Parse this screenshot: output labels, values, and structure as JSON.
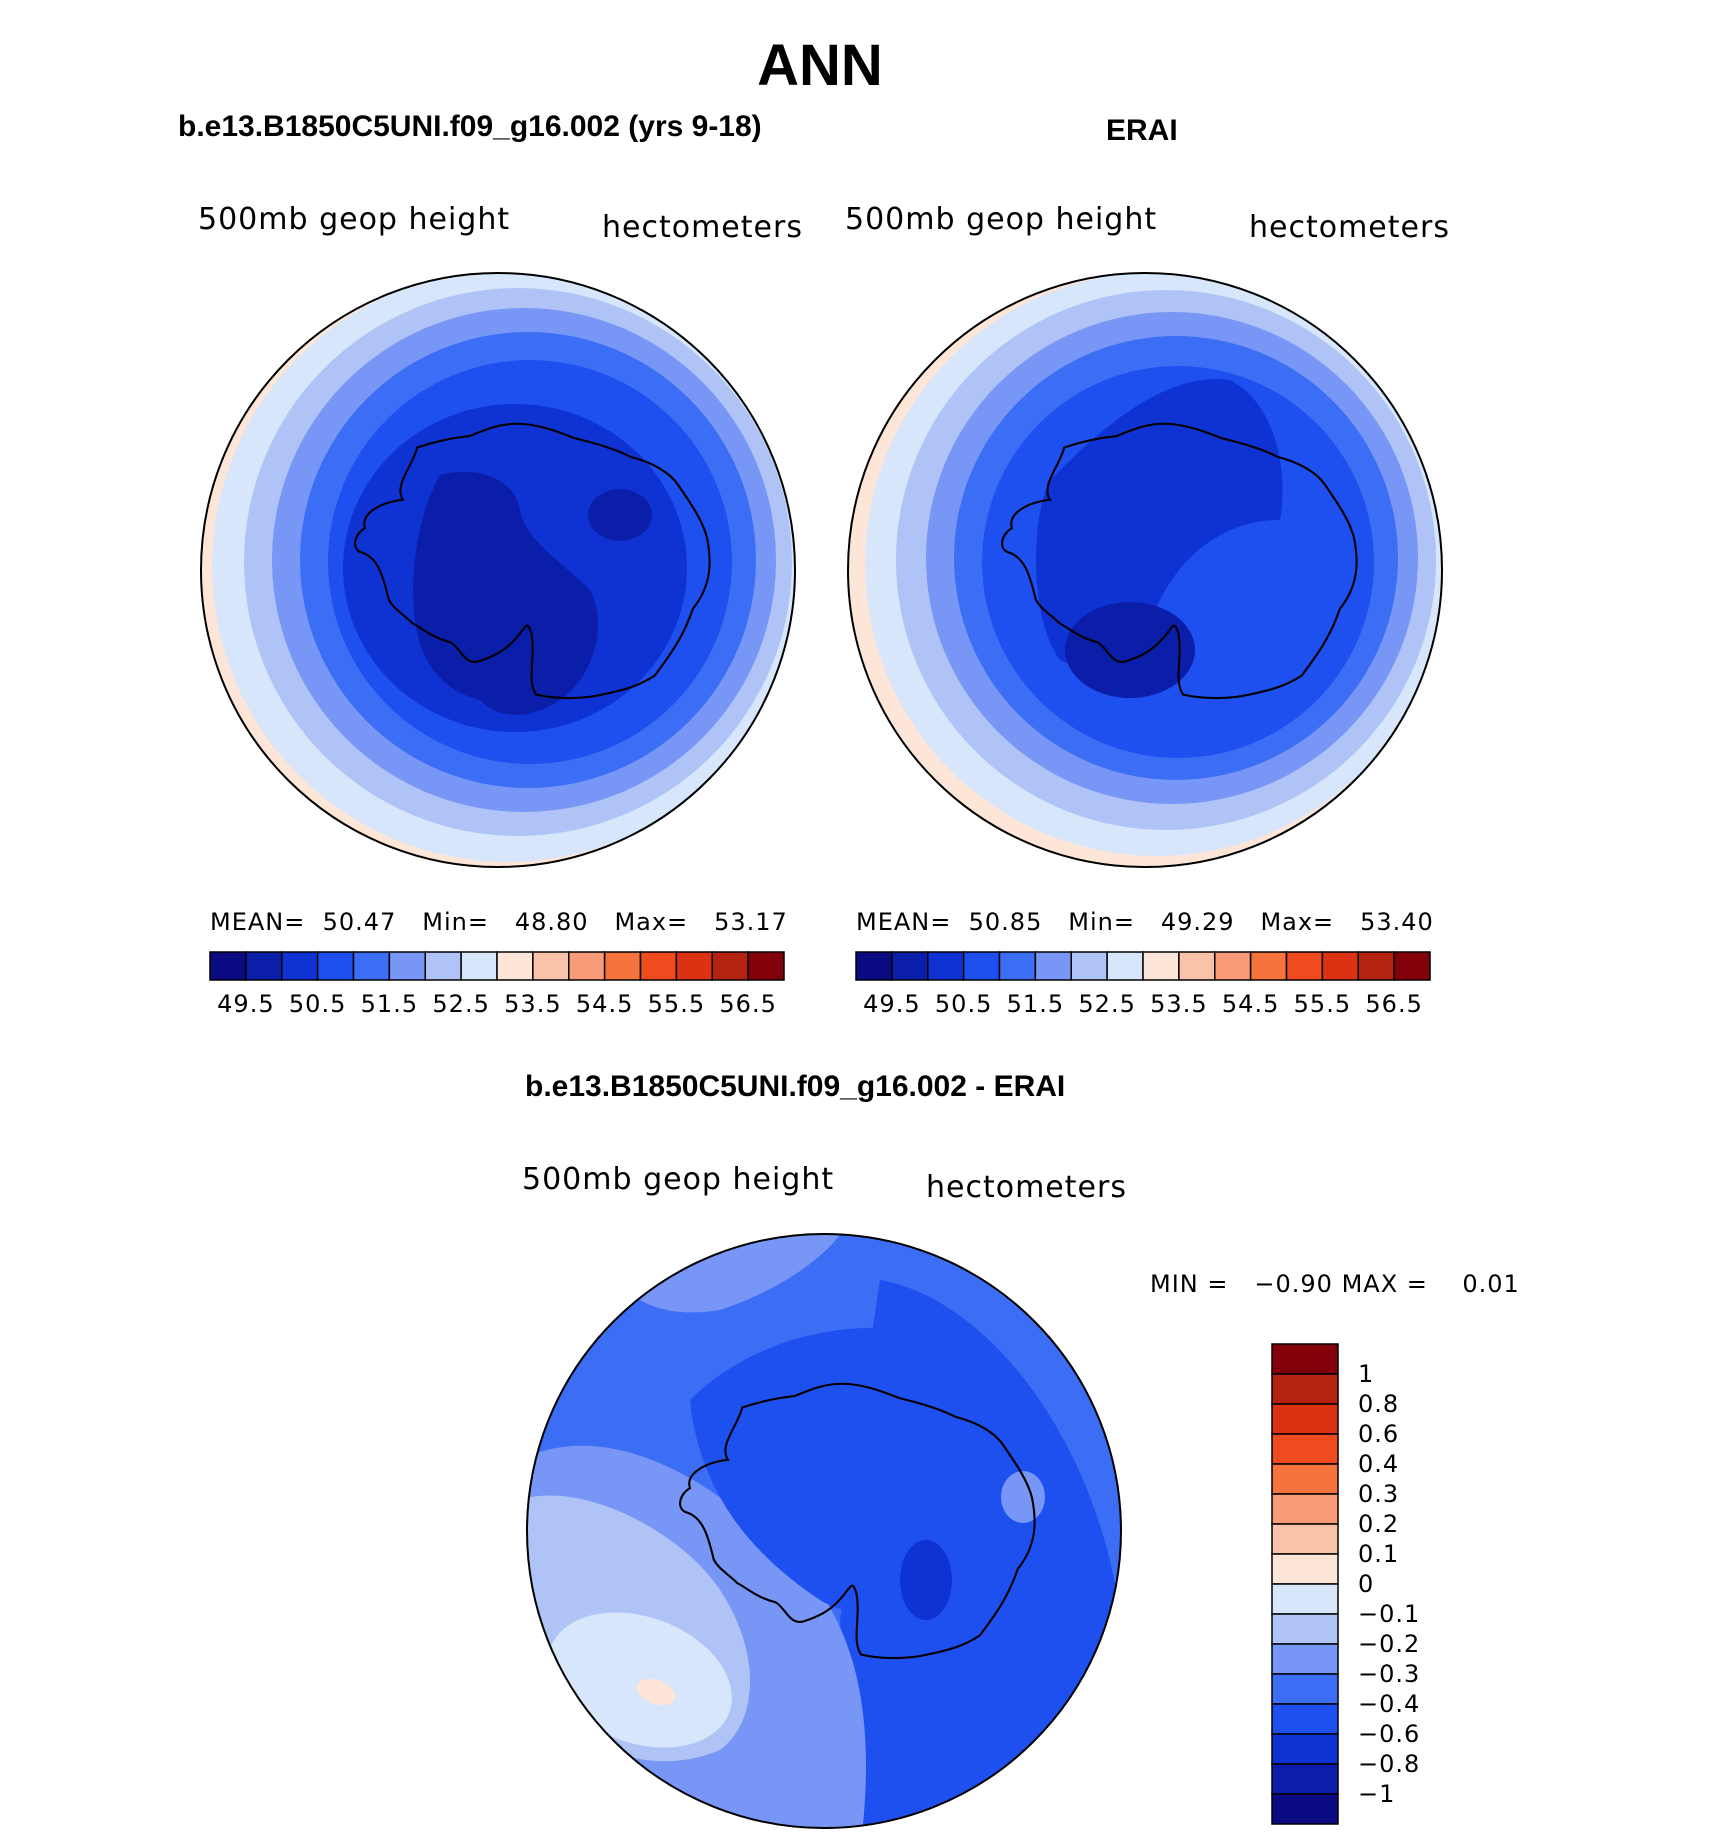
{
  "figure": {
    "title": "ANN",
    "panels": [
      {
        "title": "b.e13.B1850C5UNI.f09_g16.002 (yrs 9-18)",
        "variable_label": "500mb geop height",
        "units_label": "hectometers",
        "stats": {
          "mean_label": "MEAN=",
          "mean": "50.47",
          "min_label": "Min=",
          "min": "48.80",
          "max_label": "Max=",
          "max": "53.17"
        }
      },
      {
        "title": "ERAI",
        "variable_label": "500mb geop height",
        "units_label": "hectometers",
        "stats": {
          "mean_label": "MEAN=",
          "mean": "50.85",
          "min_label": "Min=",
          "min": "49.29",
          "max_label": "Max=",
          "max": "53.40"
        }
      },
      {
        "title": "b.e13.B1850C5UNI.f09_g16.002 - ERAI",
        "variable_label": "500mb geop height",
        "units_label": "hectometers",
        "stats": {
          "min_label": "MIN =",
          "min": "−0.90",
          "max_label": "MAX =",
          "max": "0.01"
        }
      }
    ]
  },
  "chart_data": {
    "type": "contour-map",
    "projection": "south-polar-stereographic",
    "region": "Antarctica",
    "horizontal_colorbar": {
      "colors": [
        "#0a0a82",
        "#0a1eaa",
        "#0f32d2",
        "#1e50f0",
        "#3c6ef5",
        "#7896f5",
        "#afc3f7",
        "#d7e6fa",
        "#fde6d7",
        "#f9c3aa",
        "#f79b78",
        "#f5733c",
        "#f04b1e",
        "#dc3214",
        "#b4230f",
        "#82000a"
      ],
      "tick_labels": [
        "49.5",
        "50.5",
        "51.5",
        "52.5",
        "53.5",
        "54.5",
        "55.5",
        "56.5"
      ]
    },
    "vertical_colorbar": {
      "colors": [
        "#82000a",
        "#b4230f",
        "#dc3214",
        "#f04b1e",
        "#f5733c",
        "#f79b78",
        "#f9c3aa",
        "#fde6d7",
        "#d7e6fa",
        "#afc3f7",
        "#7896f5",
        "#3c6ef5",
        "#1e50f0",
        "#0f32d2",
        "#0a1eaa",
        "#0a0a82"
      ],
      "tick_labels": [
        "1",
        "0.8",
        "0.6",
        "0.4",
        "0.3",
        "0.2",
        "0.1",
        "0",
        "−0.1",
        "−0.2",
        "−0.3",
        "−0.4",
        "−0.6",
        "−0.8",
        "−1"
      ]
    }
  }
}
